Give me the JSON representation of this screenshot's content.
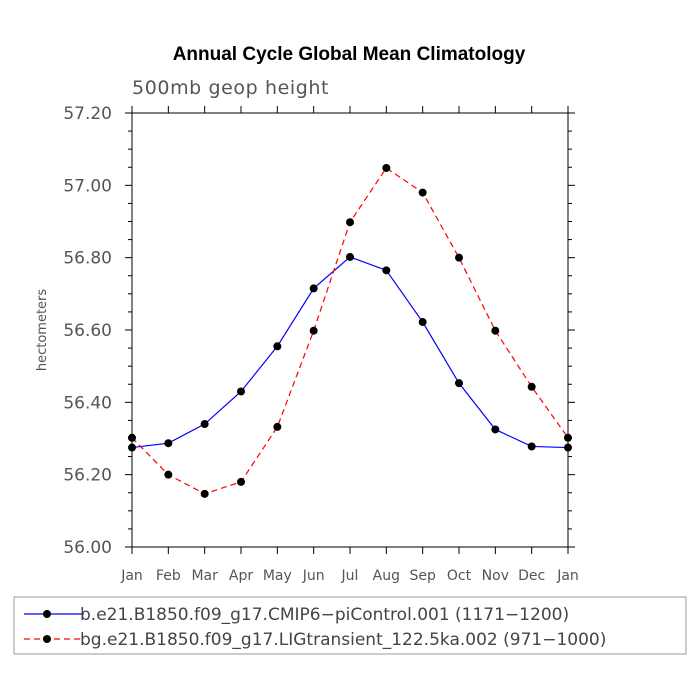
{
  "chart_data": {
    "type": "line",
    "title": "Annual Cycle Global Mean Climatology",
    "subtitle": "500mb geop height",
    "xlabel": "",
    "ylabel": "hectometers",
    "categories": [
      "Jan",
      "Feb",
      "Mar",
      "Apr",
      "May",
      "Jun",
      "Jul",
      "Aug",
      "Sep",
      "Oct",
      "Nov",
      "Dec",
      "Jan"
    ],
    "ylim": [
      56.0,
      57.2
    ],
    "yticks": [
      "56.00",
      "56.20",
      "56.40",
      "56.60",
      "56.80",
      "57.00",
      "57.20"
    ],
    "yminor_step": 0.05,
    "series": [
      {
        "name": "b.e21.B1850.f09_g17.CMIP6−piControl.001 (1171−1200)",
        "color": "#0000ff",
        "dash": "solid",
        "marker": "circle",
        "values": [
          56.275,
          56.287,
          56.34,
          56.43,
          56.555,
          56.715,
          56.802,
          56.765,
          56.622,
          56.453,
          56.325,
          56.278,
          56.275
        ]
      },
      {
        "name": "bg.e21.B1850.f09_g17.LIGtransient_122.5ka.002 (971−1000)",
        "color": "#ff0000",
        "dash": "dashed",
        "marker": "circle",
        "values": [
          56.302,
          56.2,
          56.147,
          56.18,
          56.332,
          56.598,
          56.898,
          57.048,
          56.98,
          56.8,
          56.598,
          56.443,
          56.302
        ]
      }
    ]
  }
}
